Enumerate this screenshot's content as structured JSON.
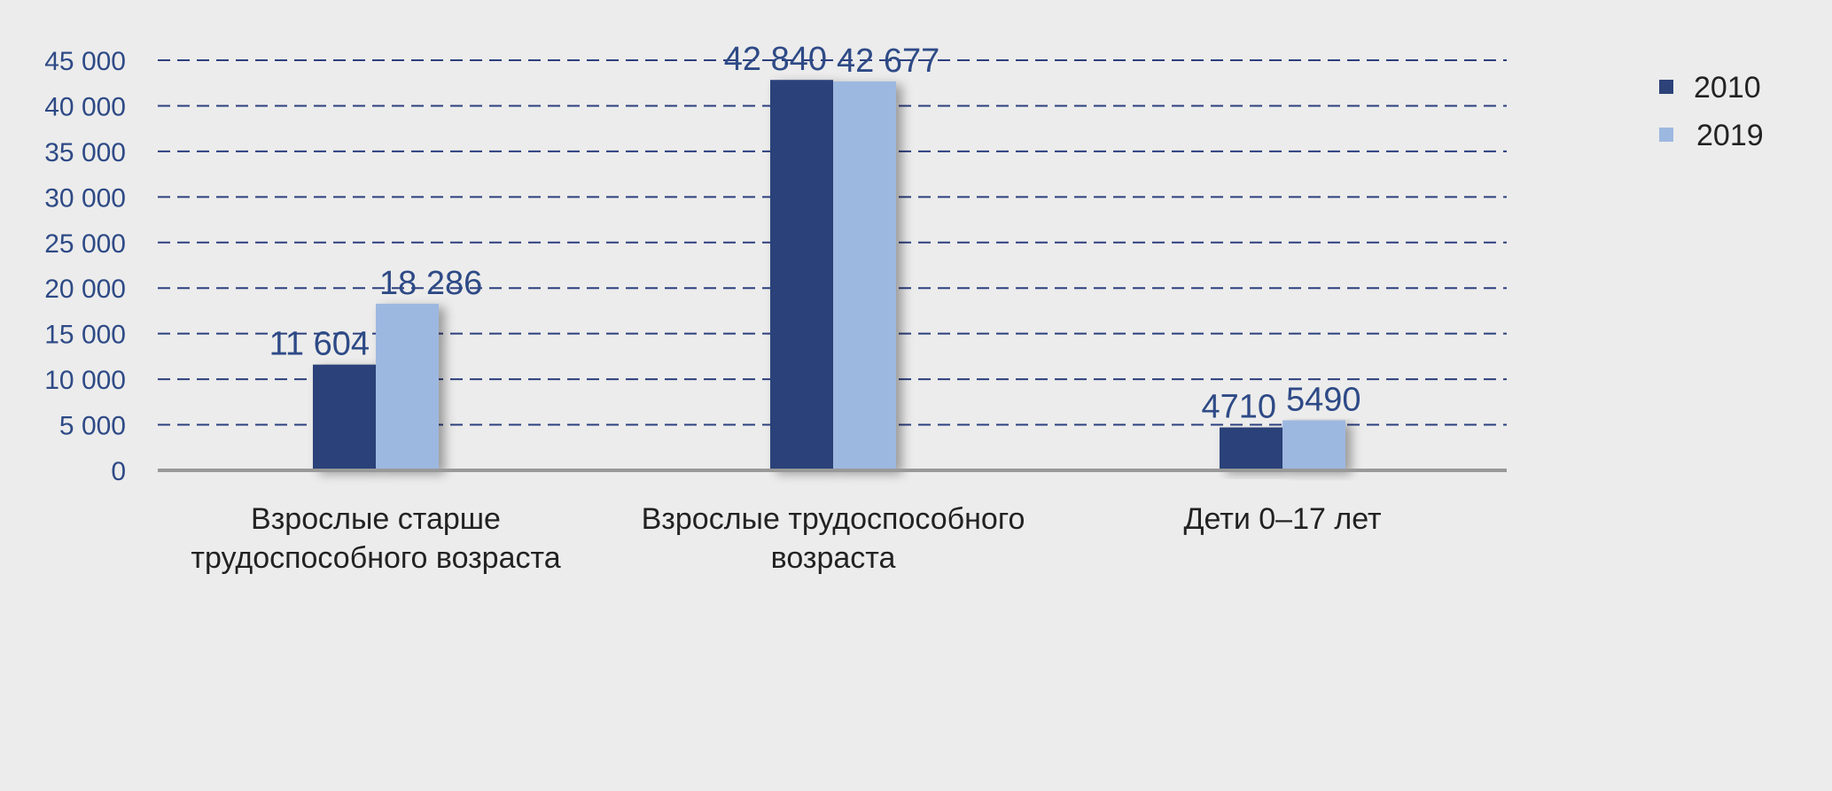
{
  "chart_data": {
    "type": "bar",
    "categories": [
      [
        "Взрослые старше",
        "трудоспособного возраста"
      ],
      [
        "Взрослые трудоспособного",
        "возраста"
      ],
      [
        "Дети 0–17 лет"
      ]
    ],
    "series": [
      {
        "name": "2010",
        "color": "#2c4279",
        "values": [
          11604,
          42840,
          4710
        ],
        "labels": [
          "11 604",
          "42 840",
          "4710"
        ]
      },
      {
        "name": "2019",
        "color": "#9db8e0",
        "values": [
          18286,
          42677,
          5490
        ],
        "labels": [
          "18 286",
          "42 677",
          "5490"
        ]
      }
    ],
    "ylim": [
      0,
      45000
    ],
    "yticks": [
      0,
      5000,
      10000,
      15000,
      20000,
      25000,
      30000,
      35000,
      40000,
      45000
    ],
    "ytick_labels": [
      "0",
      "5 000",
      "10 000",
      "15 000",
      "20 000",
      "25 000",
      "30 000",
      "35 000",
      "40 000",
      "45 000"
    ],
    "grid": true,
    "legend_position": "top-right",
    "title": "",
    "xlabel": "",
    "ylabel": ""
  }
}
